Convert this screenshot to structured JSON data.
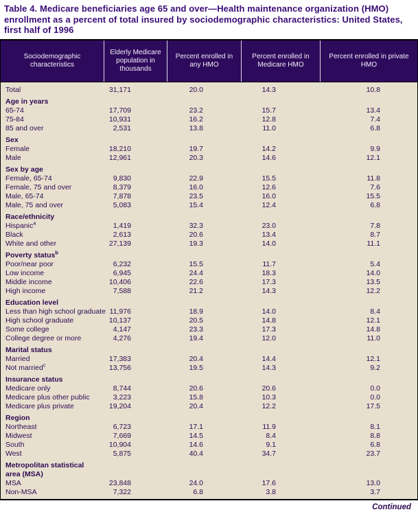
{
  "title": "Table 4. Medicare beneficiaries age 65 and over—Health maintenance organization (HMO) enrollment as a percent of total insured by sociodemographic characteristics: United States, first half of 1996",
  "continued": "Continued",
  "colors": {
    "header_background": "#2e0a5c",
    "body_background": "#e7e0cf",
    "text_purple": "#2d0a52",
    "title_purple": "#3a0d76",
    "rule_black": "#000000"
  },
  "table": {
    "columns": [
      "Sociodemographic characteristics",
      "Elderly Medicare population in thousands",
      "Percent enrolled in any HMO",
      "Percent enrolled in Medicare HMO",
      "Percent enrolled in private HMO"
    ],
    "sections": [
      {
        "header": null,
        "rows": [
          {
            "label": "Total",
            "values": [
              "31,171",
              "20.0",
              "14.3",
              "10.8"
            ]
          }
        ]
      },
      {
        "header": "Age in years",
        "rows": [
          {
            "label": "65-74",
            "values": [
              "17,709",
              "23.2",
              "15.7",
              "13.4"
            ]
          },
          {
            "label": "75-84",
            "values": [
              "10,931",
              "16.2",
              "12.8",
              "7.4"
            ]
          },
          {
            "label": "85 and over",
            "values": [
              "2,531",
              "13.8",
              "11.0",
              "6.8"
            ]
          }
        ]
      },
      {
        "header": "Sex",
        "rows": [
          {
            "label": "Female",
            "values": [
              "18,210",
              "19.7",
              "14.2",
              "9.9"
            ]
          },
          {
            "label": "Male",
            "values": [
              "12,961",
              "20.3",
              "14.6",
              "12.1"
            ]
          }
        ]
      },
      {
        "header": "Sex by age",
        "rows": [
          {
            "label": "Female, 65-74",
            "values": [
              "9,830",
              "22.9",
              "15.5",
              "11.8"
            ]
          },
          {
            "label": "Female, 75 and over",
            "values": [
              "8,379",
              "16.0",
              "12.6",
              "7.6"
            ]
          },
          {
            "label": "Male, 65-74",
            "values": [
              "7,878",
              "23.5",
              "16.0",
              "15.5"
            ]
          },
          {
            "label": "Male, 75 and over",
            "values": [
              "5,083",
              "15.4",
              "12.4",
              "6.8"
            ]
          }
        ]
      },
      {
        "header": "Race/ethnicity",
        "rows": [
          {
            "label": "Hispanic",
            "sup": "a",
            "values": [
              "1,419",
              "32.3",
              "23.0",
              "7.8"
            ]
          },
          {
            "label": "Black",
            "values": [
              "2,613",
              "20.6",
              "13.4",
              "8.7"
            ]
          },
          {
            "label": "White and other",
            "values": [
              "27,139",
              "19.3",
              "14.0",
              "11.1"
            ]
          }
        ]
      },
      {
        "header": "Poverty status",
        "header_sup": "b",
        "rows": [
          {
            "label": "Poor/near poor",
            "values": [
              "6,232",
              "15.5",
              "11.7",
              "5.4"
            ]
          },
          {
            "label": "Low income",
            "values": [
              "6,945",
              "24.4",
              "18.3",
              "14.0"
            ]
          },
          {
            "label": "Middle income",
            "values": [
              "10,406",
              "22.6",
              "17.3",
              "13.5"
            ]
          },
          {
            "label": "High income",
            "values": [
              "7,588",
              "21.2",
              "14.3",
              "12.2"
            ]
          }
        ]
      },
      {
        "header": "Education level",
        "rows": [
          {
            "label": "Less than high school graduate",
            "values": [
              "11,976",
              "18.9",
              "14.0",
              "8.4"
            ]
          },
          {
            "label": "High school graduate",
            "values": [
              "10,137",
              "20.5",
              "14.8",
              "12.1"
            ]
          },
          {
            "label": "Some college",
            "values": [
              "4,147",
              "23.3",
              "17.3",
              "14.8"
            ]
          },
          {
            "label": "College degree or more",
            "values": [
              "4,276",
              "19.4",
              "12.0",
              "11.0"
            ]
          }
        ]
      },
      {
        "header": "Marital status",
        "rows": [
          {
            "label": "Married",
            "values": [
              "17,383",
              "20.4",
              "14.4",
              "12.1"
            ]
          },
          {
            "label": "Not married",
            "sup": "c",
            "values": [
              "13,756",
              "19.5",
              "14.3",
              "9.2"
            ]
          }
        ]
      },
      {
        "header": "Insurance status",
        "rows": [
          {
            "label": "Medicare only",
            "values": [
              "8,744",
              "20.6",
              "20.6",
              "0.0"
            ]
          },
          {
            "label": "Medicare plus other public",
            "values": [
              "3,223",
              "15.8",
              "10.3",
              "0.0"
            ]
          },
          {
            "label": "Medicare plus private",
            "values": [
              "19,204",
              "20.4",
              "12.2",
              "17.5"
            ]
          }
        ]
      },
      {
        "header": "Region",
        "rows": [
          {
            "label": "Northeast",
            "values": [
              "6,723",
              "17.1",
              "11.9",
              "8.1"
            ]
          },
          {
            "label": "Midwest",
            "values": [
              "7,669",
              "14.5",
              "8.4",
              "8.8"
            ]
          },
          {
            "label": "South",
            "values": [
              "10,904",
              "14.6",
              "9.1",
              "6.8"
            ]
          },
          {
            "label": "West",
            "values": [
              "5,875",
              "40.4",
              "34.7",
              "23.7"
            ]
          }
        ]
      },
      {
        "header": "Metropolitan statistical area (MSA)",
        "rows": [
          {
            "label": "MSA",
            "values": [
              "23,848",
              "24.0",
              "17.6",
              "13.0"
            ]
          },
          {
            "label": "Non-MSA",
            "values": [
              "7,322",
              "6.8",
              "3.8",
              "3.7"
            ]
          }
        ]
      }
    ]
  }
}
